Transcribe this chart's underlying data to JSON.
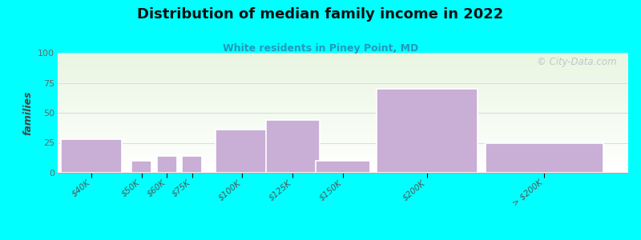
{
  "title": "Distribution of median family income in 2022",
  "subtitle": "White residents in Piney Point, MD",
  "ylabel": "families",
  "background_color": "#00FFFF",
  "bar_color": "#c9aed6",
  "bar_edge_color": "#e8e0f0",
  "watermark": "© City-Data.com",
  "values": [
    28,
    10,
    14,
    14,
    36,
    44,
    10,
    70,
    25
  ],
  "bar_centers": [
    0.5,
    2.0,
    2.75,
    3.5,
    5.0,
    6.5,
    8.0,
    10.5,
    14.0
  ],
  "bar_widths": [
    1.8,
    0.6,
    0.6,
    0.6,
    1.6,
    1.6,
    1.6,
    3.0,
    3.5
  ],
  "tick_positions": [
    0.5,
    2.0,
    2.75,
    3.5,
    5.0,
    6.5,
    8.0,
    10.5,
    14.0
  ],
  "tick_labels": [
    "$40K",
    "$50K",
    "$60K",
    "$75K",
    "$100K",
    "$125K",
    "$150K",
    "$200K",
    "> $200K"
  ],
  "ylim": [
    0,
    100
  ],
  "yticks": [
    0,
    25,
    50,
    75,
    100
  ],
  "xlim": [
    -0.5,
    16.5
  ]
}
